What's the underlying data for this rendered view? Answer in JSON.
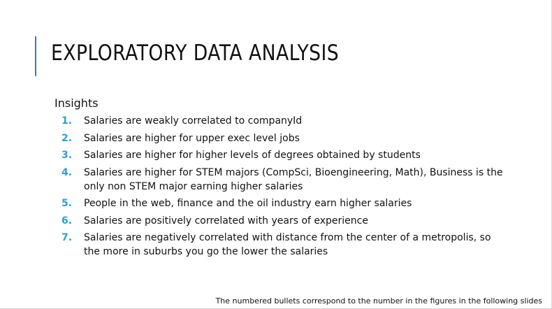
{
  "slide": {
    "title": "EXPLORATORY DATA ANALYSIS",
    "heading": "Insights",
    "items": [
      {
        "number": "1.",
        "text": "Salaries are weakly correlated to companyId"
      },
      {
        "number": "2.",
        "text": "Salaries are higher for upper exec level jobs"
      },
      {
        "number": "3.",
        "text": "Salaries are higher for higher levels of degrees obtained by students"
      },
      {
        "number": "4.",
        "text": "Salaries are higher for STEM majors (CompSci, Bioengineering, Math), Business is the only non STEM major earning higher salaries"
      },
      {
        "number": "5.",
        "text": "People in the web, finance and the oil industry earn higher salaries"
      },
      {
        "number": "6.",
        "text": "Salaries are positively correlated with years of experience"
      },
      {
        "number": "7.",
        "text": "Salaries are negatively correlated with distance from the center of a metropolis, so the more in suburbs you go the lower the salaries"
      }
    ],
    "footnote": "The numbered bullets correspond to the number in the figures in the following slides"
  },
  "colors": {
    "accent": "#2a7fc4",
    "bullet_number": "#2a9fd0",
    "text": "#111111",
    "background": "#ffffff"
  }
}
